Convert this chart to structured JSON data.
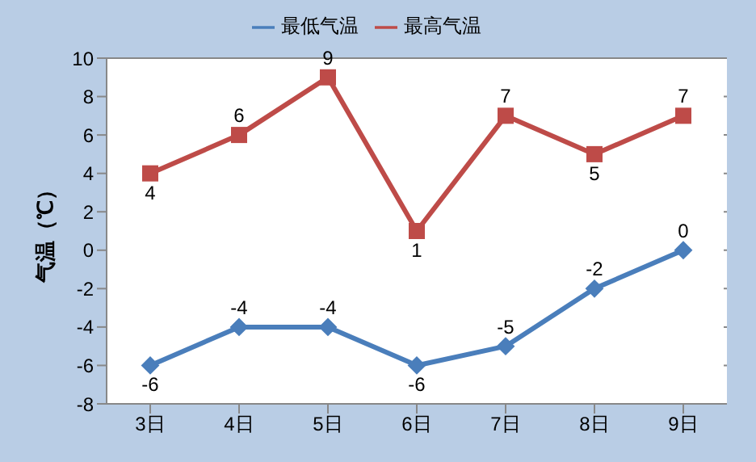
{
  "chart_data": {
    "type": "line",
    "categories": [
      "3日",
      "4日",
      "5日",
      "6日",
      "7日",
      "8日",
      "9日"
    ],
    "series": [
      {
        "name": "最低气温",
        "color": "#4a7ebb",
        "marker": "diamond",
        "values": [
          -6,
          -4,
          -4,
          -6,
          -5,
          -2,
          0
        ]
      },
      {
        "name": "最高气温",
        "color": "#be4b48",
        "marker": "square",
        "values": [
          4,
          6,
          9,
          1,
          7,
          5,
          7
        ]
      }
    ],
    "ylabel": "气温（℃）",
    "ylim": [
      -8,
      10
    ],
    "yticks": [
      -8,
      -6,
      -4,
      -2,
      0,
      2,
      4,
      6,
      8,
      10
    ],
    "grid": "y",
    "legend": "top",
    "data_labels": true
  }
}
